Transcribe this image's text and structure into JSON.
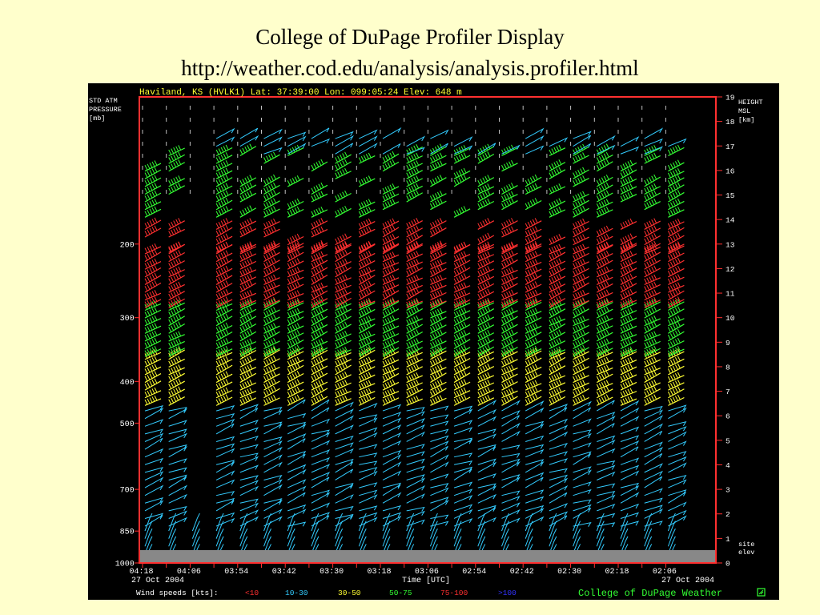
{
  "slide": {
    "title": "College of DuPage Profiler Display",
    "url": "http://weather.cod.edu/analysis/analysis.profiler.html"
  },
  "chart_data": {
    "type": "wind_profiler_time_height",
    "header": "Haviland, KS (HVLK1) Lat: 37:39:00 Lon: 099:05:24 Elev: 648 m",
    "left_axis": {
      "label_lines": [
        "STD ATM",
        "PRESSURE",
        "[mb]"
      ],
      "ticks": [
        {
          "label": "200",
          "height_km": 13
        },
        {
          "label": "300",
          "height_km": 10
        },
        {
          "label": "400",
          "height_km": 7.4
        },
        {
          "label": "500",
          "height_km": 5.7
        },
        {
          "label": "700",
          "height_km": 3
        },
        {
          "label": "850",
          "height_km": 1.3
        },
        {
          "label": "1000",
          "height_km": 0
        }
      ]
    },
    "right_axis": {
      "label_lines": [
        "HEIGHT",
        "MSL",
        "[km]"
      ],
      "ticks": [
        "0",
        "1",
        "2",
        "3",
        "4",
        "5",
        "6",
        "7",
        "8",
        "9",
        "10",
        "11",
        "12",
        "13",
        "14",
        "15",
        "16",
        "17",
        "18",
        "19"
      ],
      "range_km": [
        0,
        19
      ],
      "site_label_lines": [
        "site",
        "elev"
      ]
    },
    "time_axis": {
      "label": "Time [UTC]",
      "ticks": [
        "04:18",
        "04:06",
        "03:54",
        "03:42",
        "03:30",
        "03:18",
        "03:06",
        "02:54",
        "02:42",
        "02:30",
        "02:18",
        "02:06"
      ],
      "start_date": "27 Oct 2004",
      "end_date": "27 Oct 2004"
    },
    "legend": {
      "title": "Wind speeds [kts]:",
      "entries": [
        {
          "label": "<10",
          "color": "#ff3030"
        },
        {
          "label": "10-30",
          "color": "#33ccff"
        },
        {
          "label": "30-50",
          "color": "#ffff33"
        },
        {
          "label": "50-75",
          "color": "#33ff33"
        },
        {
          "label": "75-100",
          "color": "#ff3030"
        },
        {
          "label": ">100",
          "color": "#3333ff"
        }
      ]
    },
    "credit": "College of DuPage Weather",
    "bands": [
      {
        "from_km": 0.1,
        "to_km": 1.5,
        "color": "#33ccff",
        "style": "lowbarb"
      },
      {
        "from_km": 1.5,
        "to_km": 6.2,
        "color": "#33ccff",
        "style": "flag"
      },
      {
        "from_km": 6.2,
        "to_km": 8.3,
        "color": "#ffff33",
        "style": "barb"
      },
      {
        "from_km": 8.3,
        "to_km": 10.3,
        "color": "#33ff33",
        "style": "barb"
      },
      {
        "from_km": 10.3,
        "to_km": 12.6,
        "color": "#ff3030",
        "style": "barb"
      },
      {
        "from_km": 12.6,
        "to_km": 13.6,
        "color": "#ff3030",
        "style": "barb"
      },
      {
        "from_km": 14,
        "to_km": 16.6,
        "color": "#33ff33",
        "style": "barb"
      },
      {
        "from_km": 16.6,
        "to_km": 17.3,
        "color": "#33ccff",
        "style": "flag"
      }
    ]
  },
  "colors": {
    "background": "#ffffcc",
    "panel": "#000000",
    "frame": "#ff3030",
    "header_text": "#ffff33",
    "axis_text": "#ffffff",
    "credit_text": "#33ff33",
    "ground": "#888888"
  }
}
